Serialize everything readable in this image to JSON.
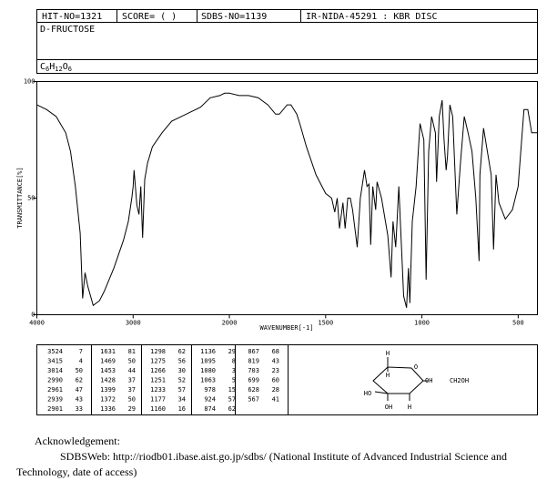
{
  "header": {
    "hit_no": "HIT-NO=1321",
    "score": "SCORE=  (    )",
    "sdbs_no": "SDBS-NO=1139",
    "method": "IR-NIDA-45291 : KBR DISC",
    "name": "D-FRUCTOSE",
    "formula": "C6H12O6"
  },
  "chart_data": {
    "type": "line",
    "ylabel": "TRANSMITTANCE[%]",
    "xlabel": "WAVENUMBER[-1]",
    "xlim": [
      4000,
      400
    ],
    "x_break": 2000,
    "ylim": [
      0,
      100
    ],
    "xticks": [
      4000,
      3000,
      2000,
      1500,
      1000,
      500
    ],
    "yticks": [
      100,
      50,
      0
    ],
    "color": "#000000",
    "x": [
      4000,
      3900,
      3800,
      3700,
      3650,
      3600,
      3550,
      3524,
      3500,
      3470,
      3415,
      3350,
      3300,
      3200,
      3100,
      3050,
      3014,
      3000,
      2990,
      2961,
      2939,
      2920,
      2901,
      2880,
      2850,
      2800,
      2700,
      2600,
      2500,
      2400,
      2300,
      2200,
      2100,
      2050,
      2000,
      1950,
      1900,
      1850,
      1800,
      1760,
      1740,
      1700,
      1680,
      1650,
      1631,
      1600,
      1550,
      1500,
      1469,
      1453,
      1440,
      1428,
      1410,
      1399,
      1385,
      1372,
      1360,
      1336,
      1320,
      1298,
      1285,
      1275,
      1266,
      1255,
      1251,
      1240,
      1233,
      1210,
      1177,
      1160,
      1150,
      1136,
      1120,
      1095,
      1080,
      1070,
      1063,
      1050,
      1030,
      1010,
      990,
      978,
      965,
      950,
      930,
      924,
      910,
      895,
      885,
      874,
      867,
      855,
      840,
      819,
      800,
      780,
      760,
      740,
      720,
      703,
      699,
      680,
      660,
      640,
      628,
      615,
      600,
      567,
      530,
      500,
      470,
      450,
      430,
      400
    ],
    "values": [
      90,
      88,
      85,
      78,
      70,
      55,
      35,
      7,
      18,
      12,
      4,
      6,
      10,
      20,
      32,
      40,
      50,
      55,
      62,
      47,
      43,
      55,
      33,
      58,
      65,
      72,
      78,
      83,
      85,
      87,
      89,
      93,
      94,
      95,
      95,
      94,
      94,
      93,
      90,
      86,
      86,
      90,
      90,
      86,
      81,
      72,
      60,
      52,
      50,
      44,
      50,
      37,
      48,
      37,
      50,
      50,
      45,
      29,
      50,
      62,
      55,
      56,
      30,
      55,
      52,
      45,
      57,
      50,
      34,
      16,
      40,
      29,
      55,
      8,
      3,
      20,
      5,
      40,
      55,
      82,
      75,
      15,
      70,
      85,
      78,
      57,
      85,
      92,
      75,
      62,
      68,
      90,
      85,
      43,
      65,
      85,
      78,
      70,
      50,
      23,
      60,
      80,
      70,
      60,
      28,
      60,
      48,
      41,
      45,
      55,
      88,
      88,
      78,
      78
    ]
  },
  "peak_table": {
    "columns": [
      [
        [
          3524,
          7
        ],
        [
          3415,
          4
        ],
        [
          3014,
          50
        ],
        [
          2990,
          62
        ],
        [
          2961,
          47
        ],
        [
          2939,
          43
        ],
        [
          2901,
          33
        ]
      ],
      [
        [
          1631,
          81
        ],
        [
          1469,
          50
        ],
        [
          1453,
          44
        ],
        [
          1428,
          37
        ],
        [
          1399,
          37
        ],
        [
          1372,
          50
        ],
        [
          1336,
          29
        ]
      ],
      [
        [
          1298,
          62
        ],
        [
          1275,
          56
        ],
        [
          1266,
          30
        ],
        [
          1251,
          52
        ],
        [
          1233,
          57
        ],
        [
          1177,
          34
        ],
        [
          1160,
          16
        ]
      ],
      [
        [
          1136,
          29
        ],
        [
          1095,
          8
        ],
        [
          1080,
          3
        ],
        [
          1063,
          5
        ],
        [
          978,
          15
        ],
        [
          924,
          57
        ],
        [
          874,
          62
        ]
      ],
      [
        [
          867,
          68
        ],
        [
          819,
          43
        ],
        [
          703,
          23
        ],
        [
          699,
          60
        ],
        [
          628,
          28
        ],
        [
          567,
          41
        ]
      ]
    ]
  },
  "structure": {
    "labels": [
      "H",
      "H",
      "O",
      "OH",
      "CH2OH",
      "HO",
      "OH",
      "H"
    ]
  },
  "acknowledgement": {
    "title": "Acknowledgement:",
    "text": "SDBSWeb: http://riodb01.ibase.aist.go.jp/sdbs/ (National Institute of Advanced Industrial Science and Technology, date of access)"
  }
}
